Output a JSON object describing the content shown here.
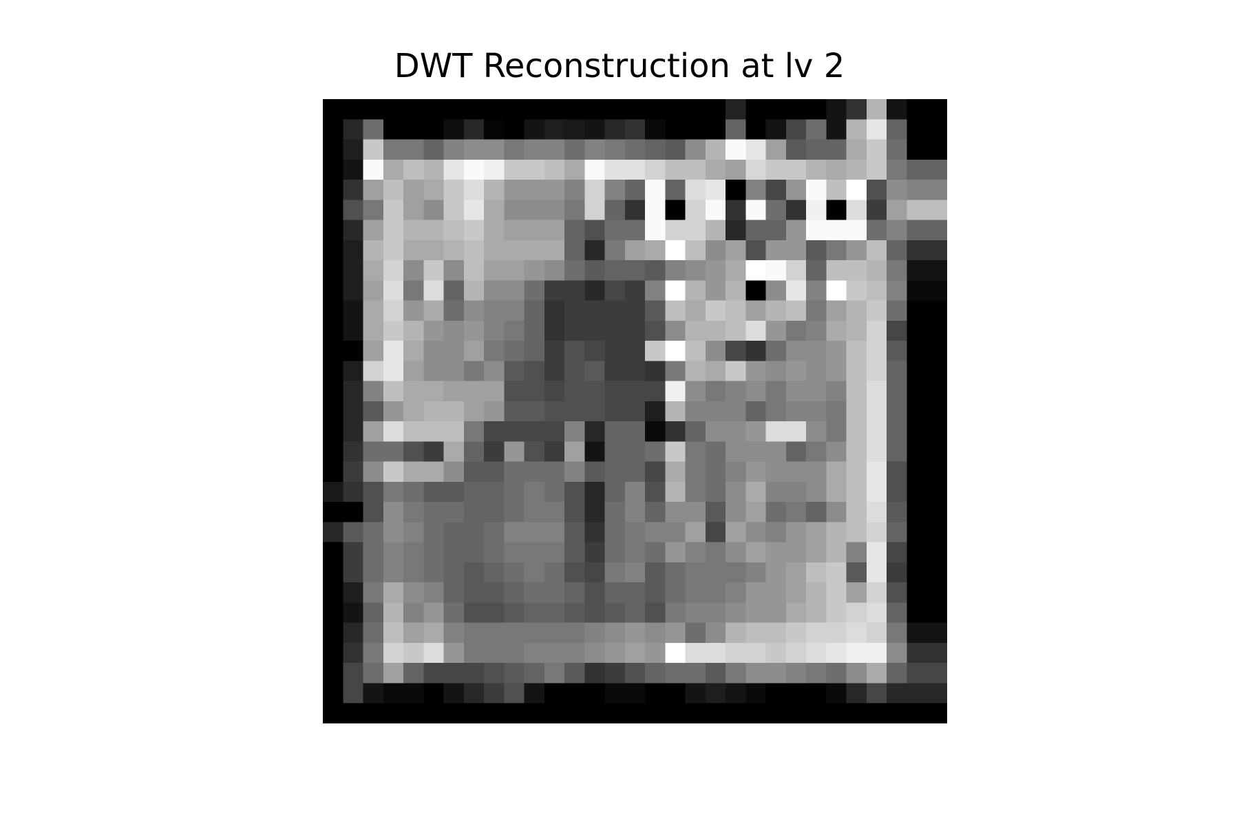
{
  "figure": {
    "title": "DWT Reconstruction at lv 2"
  },
  "image": {
    "rows": 31,
    "cols": 31,
    "colormap": "gray",
    "description_note": "Grayscale reconstructed image shown as a 31x31 grid of pixels"
  },
  "pixels": [
    [
      0,
      0,
      0,
      0,
      0,
      0,
      0,
      0,
      0,
      0,
      0,
      0,
      0,
      0,
      0,
      0,
      0,
      0,
      0,
      0,
      35,
      0,
      0,
      0,
      0,
      20,
      50,
      180,
      20,
      0,
      0
    ],
    [
      0,
      40,
      110,
      0,
      0,
      0,
      15,
      40,
      5,
      0,
      20,
      30,
      25,
      20,
      40,
      50,
      10,
      0,
      0,
      0,
      100,
      0,
      20,
      70,
      110,
      20,
      180,
      230,
      100,
      0,
      0
    ],
    [
      0,
      30,
      200,
      120,
      120,
      100,
      130,
      140,
      140,
      120,
      130,
      130,
      110,
      130,
      120,
      110,
      100,
      90,
      140,
      180,
      250,
      230,
      160,
      90,
      100,
      100,
      170,
      200,
      110,
      0,
      0
    ],
    [
      0,
      20,
      250,
      170,
      190,
      180,
      230,
      250,
      240,
      200,
      200,
      190,
      170,
      250,
      225,
      225,
      210,
      190,
      190,
      170,
      160,
      215,
      200,
      200,
      180,
      170,
      180,
      200,
      120,
      100,
      100
    ],
    [
      0,
      50,
      160,
      190,
      160,
      170,
      200,
      220,
      180,
      150,
      150,
      150,
      130,
      210,
      130,
      100,
      250,
      100,
      220,
      230,
      0,
      130,
      70,
      150,
      250,
      190,
      255,
      80,
      140,
      130,
      130
    ],
    [
      0,
      80,
      120,
      200,
      160,
      140,
      200,
      230,
      170,
      140,
      140,
      140,
      120,
      210,
      100,
      50,
      250,
      0,
      210,
      250,
      50,
      250,
      110,
      50,
      240,
      0,
      220,
      60,
      160,
      190,
      190
    ],
    [
      0,
      40,
      160,
      200,
      180,
      180,
      190,
      200,
      170,
      160,
      160,
      160,
      100,
      80,
      110,
      110,
      250,
      210,
      210,
      180,
      40,
      100,
      100,
      150,
      250,
      250,
      250,
      110,
      130,
      100,
      100
    ],
    [
      0,
      30,
      180,
      200,
      170,
      170,
      180,
      190,
      170,
      170,
      170,
      170,
      100,
      40,
      120,
      160,
      170,
      255,
      190,
      140,
      160,
      80,
      150,
      150,
      90,
      120,
      150,
      190,
      100,
      50,
      50
    ],
    [
      0,
      30,
      170,
      210,
      140,
      200,
      140,
      190,
      160,
      160,
      150,
      140,
      110,
      90,
      100,
      100,
      90,
      130,
      140,
      150,
      170,
      255,
      250,
      210,
      100,
      190,
      190,
      180,
      120,
      20,
      20
    ],
    [
      0,
      30,
      160,
      220,
      120,
      220,
      100,
      180,
      140,
      140,
      110,
      60,
      60,
      40,
      70,
      60,
      130,
      255,
      180,
      150,
      180,
      0,
      140,
      230,
      130,
      255,
      200,
      190,
      130,
      10,
      10
    ],
    [
      0,
      20,
      170,
      210,
      150,
      170,
      110,
      140,
      130,
      130,
      100,
      50,
      60,
      60,
      60,
      60,
      90,
      190,
      170,
      200,
      190,
      160,
      180,
      190,
      120,
      160,
      180,
      200,
      110,
      0,
      0
    ],
    [
      0,
      20,
      170,
      200,
      180,
      150,
      140,
      150,
      130,
      120,
      100,
      50,
      60,
      60,
      60,
      60,
      80,
      140,
      180,
      180,
      190,
      220,
      150,
      120,
      130,
      170,
      180,
      210,
      70,
      0,
      0
    ],
    [
      0,
      0,
      160,
      230,
      170,
      140,
      140,
      160,
      120,
      110,
      100,
      60,
      80,
      70,
      60,
      60,
      200,
      255,
      190,
      140,
      70,
      50,
      110,
      140,
      140,
      150,
      190,
      210,
      90,
      0,
      0
    ],
    [
      0,
      30,
      210,
      230,
      160,
      140,
      140,
      120,
      140,
      90,
      80,
      60,
      80,
      90,
      60,
      60,
      50,
      120,
      180,
      170,
      200,
      150,
      140,
      150,
      140,
      150,
      190,
      210,
      100,
      0,
      0
    ],
    [
      0,
      40,
      130,
      190,
      170,
      170,
      160,
      160,
      160,
      80,
      80,
      70,
      80,
      80,
      70,
      70,
      70,
      240,
      140,
      120,
      130,
      140,
      120,
      140,
      140,
      130,
      190,
      220,
      100,
      0,
      0
    ],
    [
      0,
      40,
      90,
      150,
      170,
      180,
      180,
      160,
      150,
      90,
      90,
      80,
      80,
      80,
      70,
      70,
      30,
      180,
      130,
      130,
      130,
      100,
      120,
      130,
      130,
      120,
      190,
      220,
      100,
      0,
      0
    ],
    [
      0,
      40,
      160,
      220,
      190,
      190,
      190,
      120,
      70,
      70,
      70,
      70,
      130,
      40,
      100,
      100,
      10,
      50,
      100,
      140,
      140,
      150,
      220,
      220,
      140,
      120,
      190,
      220,
      100,
      0,
      0
    ],
    [
      0,
      50,
      110,
      110,
      80,
      60,
      170,
      100,
      60,
      150,
      80,
      60,
      160,
      20,
      100,
      100,
      110,
      200,
      120,
      110,
      140,
      140,
      140,
      100,
      120,
      140,
      190,
      220,
      100,
      0,
      0
    ],
    [
      0,
      60,
      140,
      200,
      170,
      170,
      140,
      90,
      90,
      110,
      110,
      110,
      130,
      90,
      100,
      100,
      70,
      170,
      120,
      110,
      130,
      150,
      140,
      140,
      140,
      170,
      190,
      230,
      80,
      0,
      0
    ],
    [
      25,
      50,
      80,
      120,
      110,
      90,
      90,
      100,
      100,
      110,
      120,
      110,
      80,
      40,
      100,
      130,
      80,
      180,
      120,
      110,
      140,
      170,
      130,
      130,
      140,
      170,
      190,
      230,
      80,
      0,
      0
    ],
    [
      0,
      0,
      80,
      140,
      120,
      110,
      110,
      100,
      100,
      110,
      120,
      120,
      80,
      40,
      110,
      130,
      100,
      140,
      140,
      90,
      140,
      160,
      110,
      120,
      100,
      140,
      190,
      220,
      90,
      0,
      0
    ],
    [
      40,
      90,
      110,
      140,
      130,
      110,
      100,
      100,
      110,
      130,
      130,
      130,
      90,
      50,
      110,
      120,
      130,
      130,
      160,
      70,
      160,
      140,
      130,
      150,
      160,
      180,
      190,
      210,
      100,
      0,
      0
    ],
    [
      0,
      60,
      110,
      130,
      120,
      110,
      100,
      100,
      110,
      120,
      120,
      120,
      90,
      60,
      110,
      120,
      110,
      150,
      130,
      120,
      140,
      160,
      150,
      150,
      160,
      180,
      130,
      230,
      70,
      0,
      0
    ],
    [
      0,
      60,
      110,
      130,
      120,
      110,
      100,
      90,
      100,
      110,
      120,
      110,
      80,
      70,
      120,
      130,
      90,
      110,
      120,
      120,
      120,
      130,
      150,
      160,
      190,
      200,
      90,
      230,
      60,
      0,
      0
    ],
    [
      0,
      30,
      120,
      170,
      140,
      130,
      100,
      90,
      90,
      100,
      110,
      110,
      100,
      80,
      100,
      100,
      90,
      110,
      120,
      120,
      130,
      150,
      150,
      160,
      180,
      200,
      160,
      210,
      80,
      0,
      0
    ],
    [
      0,
      20,
      100,
      180,
      130,
      150,
      110,
      80,
      80,
      90,
      100,
      100,
      90,
      80,
      90,
      100,
      80,
      120,
      130,
      130,
      140,
      150,
      150,
      170,
      180,
      200,
      210,
      220,
      100,
      0,
      0
    ],
    [
      0,
      40,
      110,
      190,
      160,
      170,
      130,
      120,
      120,
      120,
      120,
      120,
      120,
      130,
      140,
      150,
      140,
      150,
      110,
      140,
      180,
      190,
      190,
      200,
      210,
      210,
      220,
      210,
      120,
      20,
      20
    ],
    [
      0,
      50,
      120,
      210,
      200,
      220,
      150,
      120,
      120,
      120,
      130,
      130,
      130,
      140,
      150,
      160,
      150,
      255,
      220,
      220,
      210,
      210,
      200,
      210,
      220,
      230,
      240,
      240,
      140,
      50,
      50
    ],
    [
      0,
      70,
      110,
      160,
      100,
      70,
      70,
      70,
      80,
      90,
      100,
      120,
      90,
      50,
      60,
      80,
      100,
      110,
      110,
      90,
      120,
      140,
      140,
      130,
      120,
      110,
      140,
      170,
      100,
      70,
      70
    ],
    [
      0,
      70,
      20,
      10,
      10,
      0,
      20,
      40,
      60,
      80,
      20,
      0,
      0,
      0,
      10,
      10,
      0,
      0,
      20,
      30,
      20,
      10,
      0,
      0,
      0,
      10,
      40,
      70,
      40,
      40,
      40
    ],
    [
      0,
      0,
      0,
      0,
      0,
      0,
      0,
      0,
      0,
      0,
      0,
      0,
      0,
      0,
      0,
      0,
      0,
      0,
      0,
      0,
      0,
      0,
      0,
      0,
      0,
      0,
      0,
      0,
      0,
      0,
      0
    ]
  ]
}
